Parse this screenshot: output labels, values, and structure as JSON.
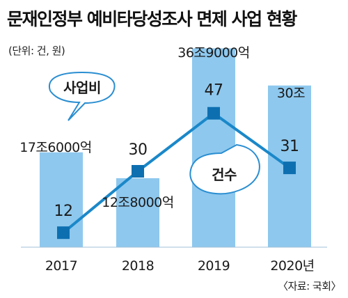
{
  "title": "문재인정부 예비타당성조사 면제 사업 현황",
  "unit": "(단위: 건, 원)",
  "source": "〈자료: 국회〉",
  "chart_data": {
    "type": "bar",
    "categories": [
      "2017",
      "2018",
      "2019",
      "2020년"
    ],
    "series": [
      {
        "name": "사업비",
        "type": "bar",
        "values": [
          17.6,
          12.8,
          36.9,
          30
        ],
        "labels": [
          "17조6000억",
          "12조8000억",
          "36조9000억",
          "30조"
        ]
      },
      {
        "name": "건수",
        "type": "line",
        "values": [
          12,
          30,
          47,
          31
        ]
      }
    ],
    "colors": {
      "bar": "#8ec8ee",
      "line": "#1a88c9",
      "marker": "#0d6fb0",
      "callout_border": "#2a8ed1"
    }
  }
}
